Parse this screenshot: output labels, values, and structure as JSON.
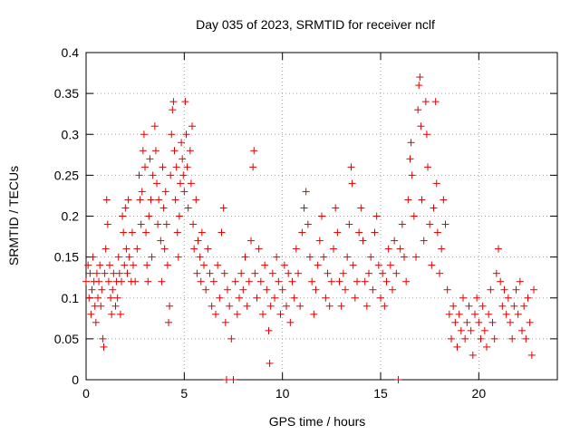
{
  "chart_data": {
    "type": "scatter",
    "title": "Day 035 of 2023, SRMTID for receiver nclf",
    "xlabel": "GPS time / hours",
    "ylabel": "SRMTID / TECUs",
    "xlim": [
      0,
      24
    ],
    "ylim": [
      0,
      0.4
    ],
    "xticks": [
      0,
      5,
      10,
      15,
      20
    ],
    "xtick_labels": [
      "0",
      "5",
      "10",
      "15",
      "20"
    ],
    "yticks": [
      0,
      0.05,
      0.1,
      0.15,
      0.2,
      0.25,
      0.3,
      0.35,
      0.4
    ],
    "ytick_labels": [
      "0",
      "0.05",
      "0.1",
      "0.15",
      "0.2",
      "0.25",
      "0.3",
      "0.35",
      "0.4"
    ],
    "grid": true,
    "marker": "plus",
    "color": "#e00000",
    "series": [
      {
        "points": [
          [
            0.0,
            0.12
          ],
          [
            0.1,
            0.14
          ],
          [
            0.15,
            0.1
          ],
          [
            0.2,
            0.13
          ],
          [
            0.25,
            0.08
          ],
          [
            0.3,
            0.11
          ],
          [
            0.35,
            0.15
          ],
          [
            0.4,
            0.12
          ],
          [
            0.45,
            0.09
          ],
          [
            0.5,
            0.07
          ],
          [
            0.55,
            0.13
          ],
          [
            0.6,
            0.1
          ],
          [
            0.65,
            0.12
          ],
          [
            0.7,
            0.14
          ],
          [
            0.75,
            0.09
          ],
          [
            0.8,
            0.11
          ],
          [
            0.85,
            0.05
          ],
          [
            0.9,
            0.04
          ],
          [
            0.95,
            0.13
          ],
          [
            1.0,
            0.16
          ],
          [
            1.05,
            0.22
          ],
          [
            1.1,
            0.19
          ],
          [
            1.15,
            0.12
          ],
          [
            1.2,
            0.14
          ],
          [
            1.25,
            0.1
          ],
          [
            1.3,
            0.08
          ],
          [
            1.35,
            0.11
          ],
          [
            1.4,
            0.13
          ],
          [
            1.5,
            0.09
          ],
          [
            1.55,
            0.12
          ],
          [
            1.6,
            0.1
          ],
          [
            1.65,
            0.15
          ],
          [
            1.7,
            0.13
          ],
          [
            1.75,
            0.08
          ],
          [
            1.8,
            0.12
          ],
          [
            1.85,
            0.2
          ],
          [
            1.9,
            0.18
          ],
          [
            1.95,
            0.14
          ],
          [
            2.0,
            0.21
          ],
          [
            2.05,
            0.16
          ],
          [
            2.1,
            0.13
          ],
          [
            2.15,
            0.22
          ],
          [
            2.2,
            0.15
          ],
          [
            2.3,
            0.12
          ],
          [
            2.35,
            0.18
          ],
          [
            2.4,
            0.14
          ],
          [
            2.5,
            0.12
          ],
          [
            2.6,
            0.16
          ],
          [
            2.7,
            0.25
          ],
          [
            2.75,
            0.22
          ],
          [
            2.8,
            0.19
          ],
          [
            2.85,
            0.23
          ],
          [
            2.9,
            0.28
          ],
          [
            2.95,
            0.3
          ],
          [
            3.0,
            0.26
          ],
          [
            3.05,
            0.18
          ],
          [
            3.1,
            0.14
          ],
          [
            3.15,
            0.12
          ],
          [
            3.2,
            0.2
          ],
          [
            3.25,
            0.27
          ],
          [
            3.3,
            0.22
          ],
          [
            3.35,
            0.15
          ],
          [
            3.4,
            0.25
          ],
          [
            3.5,
            0.31
          ],
          [
            3.55,
            0.28
          ],
          [
            3.6,
            0.24
          ],
          [
            3.65,
            0.19
          ],
          [
            3.7,
            0.22
          ],
          [
            3.8,
            0.17
          ],
          [
            3.85,
            0.12
          ],
          [
            3.9,
            0.26
          ],
          [
            3.95,
            0.21
          ],
          [
            4.0,
            0.16
          ],
          [
            4.05,
            0.23
          ],
          [
            4.1,
            0.19
          ],
          [
            4.15,
            0.14
          ],
          [
            4.2,
            0.07
          ],
          [
            4.25,
            0.09
          ],
          [
            4.3,
            0.25
          ],
          [
            4.35,
            0.3
          ],
          [
            4.4,
            0.33
          ],
          [
            4.45,
            0.34
          ],
          [
            4.5,
            0.28
          ],
          [
            4.55,
            0.22
          ],
          [
            4.6,
            0.26
          ],
          [
            4.65,
            0.18
          ],
          [
            4.7,
            0.15
          ],
          [
            4.75,
            0.2
          ],
          [
            4.8,
            0.24
          ],
          [
            4.85,
            0.29
          ],
          [
            4.9,
            0.27
          ],
          [
            4.95,
            0.25
          ],
          [
            5.0,
            0.23
          ],
          [
            5.05,
            0.34
          ],
          [
            5.1,
            0.3
          ],
          [
            5.15,
            0.26
          ],
          [
            5.2,
            0.21
          ],
          [
            5.3,
            0.28
          ],
          [
            5.35,
            0.24
          ],
          [
            5.4,
            0.31
          ],
          [
            5.45,
            0.19
          ],
          [
            5.5,
            0.16
          ],
          [
            5.6,
            0.22
          ],
          [
            5.65,
            0.13
          ],
          [
            5.7,
            0.17
          ],
          [
            5.8,
            0.15
          ],
          [
            5.85,
            0.12
          ],
          [
            5.9,
            0.18
          ],
          [
            6.0,
            0.14
          ],
          [
            6.1,
            0.11
          ],
          [
            6.2,
            0.16
          ],
          [
            6.3,
            0.13
          ],
          [
            6.4,
            0.09
          ],
          [
            6.5,
            0.12
          ],
          [
            6.6,
            0.08
          ],
          [
            6.7,
            0.14
          ],
          [
            6.8,
            0.1
          ],
          [
            6.9,
            0.18
          ],
          [
            7.0,
            0.21
          ],
          [
            7.05,
            0.13
          ],
          [
            7.1,
            0.07
          ],
          [
            7.15,
            0.0
          ],
          [
            7.2,
            0.11
          ],
          [
            7.3,
            0.09
          ],
          [
            7.4,
            0.05
          ],
          [
            7.5,
            0.0
          ],
          [
            7.6,
            0.12
          ],
          [
            7.7,
            0.08
          ],
          [
            7.8,
            0.1
          ],
          [
            7.9,
            0.13
          ],
          [
            8.0,
            0.11
          ],
          [
            8.1,
            0.15
          ],
          [
            8.2,
            0.09
          ],
          [
            8.3,
            0.12
          ],
          [
            8.4,
            0.17
          ],
          [
            8.5,
            0.26
          ],
          [
            8.55,
            0.28
          ],
          [
            8.6,
            0.13
          ],
          [
            8.7,
            0.1
          ],
          [
            8.8,
            0.16
          ],
          [
            8.9,
            0.12
          ],
          [
            9.0,
            0.08
          ],
          [
            9.1,
            0.14
          ],
          [
            9.2,
            0.11
          ],
          [
            9.3,
            0.06
          ],
          [
            9.35,
            0.02
          ],
          [
            9.4,
            0.09
          ],
          [
            9.5,
            0.13
          ],
          [
            9.6,
            0.1
          ],
          [
            9.7,
            0.15
          ],
          [
            9.8,
            0.12
          ],
          [
            9.9,
            0.08
          ],
          [
            10.0,
            0.11
          ],
          [
            10.1,
            0.14
          ],
          [
            10.2,
            0.09
          ],
          [
            10.3,
            0.13
          ],
          [
            10.4,
            0.07
          ],
          [
            10.5,
            0.12
          ],
          [
            10.6,
            0.1
          ],
          [
            10.7,
            0.16
          ],
          [
            10.8,
            0.13
          ],
          [
            10.9,
            0.09
          ],
          [
            11.0,
            0.18
          ],
          [
            11.1,
            0.21
          ],
          [
            11.2,
            0.23
          ],
          [
            11.3,
            0.19
          ],
          [
            11.4,
            0.15
          ],
          [
            11.5,
            0.12
          ],
          [
            11.6,
            0.08
          ],
          [
            11.7,
            0.11
          ],
          [
            11.8,
            0.14
          ],
          [
            11.9,
            0.17
          ],
          [
            12.0,
            0.2
          ],
          [
            12.1,
            0.15
          ],
          [
            12.2,
            0.1
          ],
          [
            12.3,
            0.13
          ],
          [
            12.4,
            0.09
          ],
          [
            12.5,
            0.12
          ],
          [
            12.6,
            0.16
          ],
          [
            12.7,
            0.21
          ],
          [
            12.8,
            0.18
          ],
          [
            12.9,
            0.12
          ],
          [
            13.0,
            0.09
          ],
          [
            13.1,
            0.13
          ],
          [
            13.2,
            0.11
          ],
          [
            13.3,
            0.15
          ],
          [
            13.4,
            0.19
          ],
          [
            13.5,
            0.26
          ],
          [
            13.55,
            0.24
          ],
          [
            13.6,
            0.14
          ],
          [
            13.7,
            0.1
          ],
          [
            13.8,
            0.12
          ],
          [
            13.9,
            0.18
          ],
          [
            14.0,
            0.21
          ],
          [
            14.1,
            0.17
          ],
          [
            14.2,
            0.12
          ],
          [
            14.3,
            0.09
          ],
          [
            14.4,
            0.13
          ],
          [
            14.5,
            0.15
          ],
          [
            14.6,
            0.11
          ],
          [
            14.7,
            0.18
          ],
          [
            14.8,
            0.2
          ],
          [
            14.9,
            0.14
          ],
          [
            15.0,
            0.1
          ],
          [
            15.1,
            0.13
          ],
          [
            15.2,
            0.09
          ],
          [
            15.3,
            0.12
          ],
          [
            15.4,
            0.16
          ],
          [
            15.5,
            0.14
          ],
          [
            15.6,
            0.11
          ],
          [
            15.7,
            0.17
          ],
          [
            15.8,
            0.13
          ],
          [
            15.9,
            0.0
          ],
          [
            16.0,
            0.16
          ],
          [
            16.1,
            0.19
          ],
          [
            16.2,
            0.15
          ],
          [
            16.3,
            0.12
          ],
          [
            16.4,
            0.22
          ],
          [
            16.5,
            0.27
          ],
          [
            16.55,
            0.29
          ],
          [
            16.6,
            0.25
          ],
          [
            16.7,
            0.2
          ],
          [
            16.8,
            0.15
          ],
          [
            16.9,
            0.33
          ],
          [
            16.95,
            0.36
          ],
          [
            17.0,
            0.37
          ],
          [
            17.05,
            0.31
          ],
          [
            17.1,
            0.22
          ],
          [
            17.2,
            0.17
          ],
          [
            17.3,
            0.34
          ],
          [
            17.35,
            0.3
          ],
          [
            17.4,
            0.26
          ],
          [
            17.5,
            0.19
          ],
          [
            17.6,
            0.14
          ],
          [
            17.7,
            0.21
          ],
          [
            17.8,
            0.34
          ],
          [
            17.85,
            0.24
          ],
          [
            17.9,
            0.18
          ],
          [
            18.0,
            0.13
          ],
          [
            18.1,
            0.16
          ],
          [
            18.2,
            0.22
          ],
          [
            18.3,
            0.19
          ],
          [
            18.4,
            0.11
          ],
          [
            18.5,
            0.08
          ],
          [
            18.6,
            0.05
          ],
          [
            18.7,
            0.09
          ],
          [
            18.8,
            0.07
          ],
          [
            18.9,
            0.04
          ],
          [
            19.0,
            0.08
          ],
          [
            19.1,
            0.06
          ],
          [
            19.2,
            0.1
          ],
          [
            19.3,
            0.05
          ],
          [
            19.4,
            0.07
          ],
          [
            19.5,
            0.09
          ],
          [
            19.6,
            0.06
          ],
          [
            19.7,
            0.03
          ],
          [
            19.8,
            0.08
          ],
          [
            19.9,
            0.1
          ],
          [
            20.0,
            0.07
          ],
          [
            20.1,
            0.05
          ],
          [
            20.2,
            0.09
          ],
          [
            20.3,
            0.06
          ],
          [
            20.4,
            0.04
          ],
          [
            20.5,
            0.08
          ],
          [
            20.6,
            0.11
          ],
          [
            20.7,
            0.07
          ],
          [
            20.8,
            0.05
          ],
          [
            20.9,
            0.13
          ],
          [
            21.0,
            0.16
          ],
          [
            21.1,
            0.12
          ],
          [
            21.2,
            0.09
          ],
          [
            21.3,
            0.11
          ],
          [
            21.4,
            0.08
          ],
          [
            21.5,
            0.1
          ],
          [
            21.6,
            0.07
          ],
          [
            21.7,
            0.05
          ],
          [
            21.8,
            0.09
          ],
          [
            21.9,
            0.11
          ],
          [
            22.0,
            0.08
          ],
          [
            22.1,
            0.12
          ],
          [
            22.2,
            0.06
          ],
          [
            22.3,
            0.09
          ],
          [
            22.4,
            0.05
          ],
          [
            22.5,
            0.1
          ],
          [
            22.6,
            0.07
          ],
          [
            22.7,
            0.03
          ],
          [
            22.8,
            0.11
          ]
        ]
      }
    ]
  }
}
